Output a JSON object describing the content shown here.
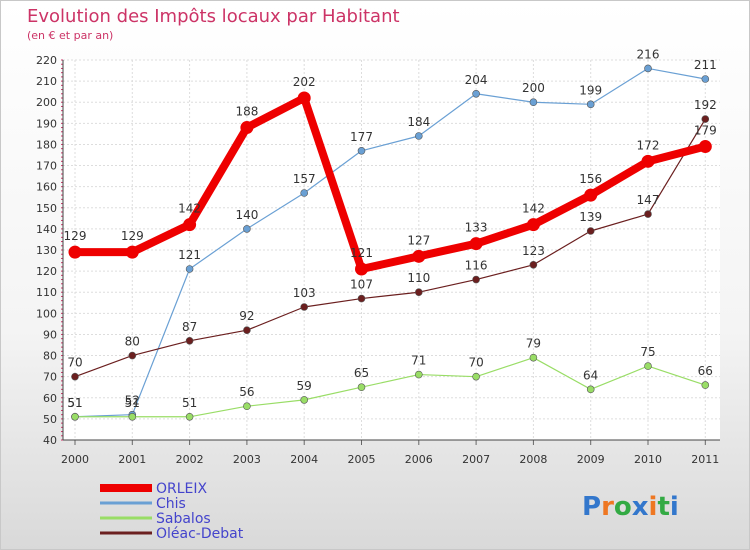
{
  "chart_data": {
    "type": "line",
    "title": "Evolution des Impôts locaux par Habitant",
    "subtitle": "(en € et par an)",
    "xlabel": "",
    "ylabel": "",
    "ylim": [
      40,
      220
    ],
    "ytick_step": 10,
    "grid": true,
    "legend_position": "bottom-left",
    "categories": [
      "2000",
      "2001",
      "2002",
      "2003",
      "2004",
      "2005",
      "2006",
      "2007",
      "2008",
      "2009",
      "2010",
      "2011"
    ],
    "series": [
      {
        "name": "ORLEIX",
        "color": "#ee0000",
        "values": [
          129,
          129,
          142,
          188,
          202,
          121,
          127,
          133,
          142,
          156,
          172,
          179
        ]
      },
      {
        "name": "Chis",
        "color": "#6aa0d4",
        "values": [
          51,
          52,
          121,
          140,
          157,
          177,
          184,
          204,
          200,
          199,
          216,
          211
        ]
      },
      {
        "name": "Sabalos",
        "color": "#99dd66",
        "values": [
          51,
          51,
          51,
          56,
          59,
          65,
          71,
          70,
          79,
          64,
          75,
          66
        ]
      },
      {
        "name": "Oléac-Debat",
        "color": "#6b1f1f",
        "values": [
          70,
          80,
          87,
          92,
          103,
          107,
          110,
          116,
          123,
          139,
          147,
          192
        ]
      }
    ]
  },
  "watermark": "Proxiti"
}
